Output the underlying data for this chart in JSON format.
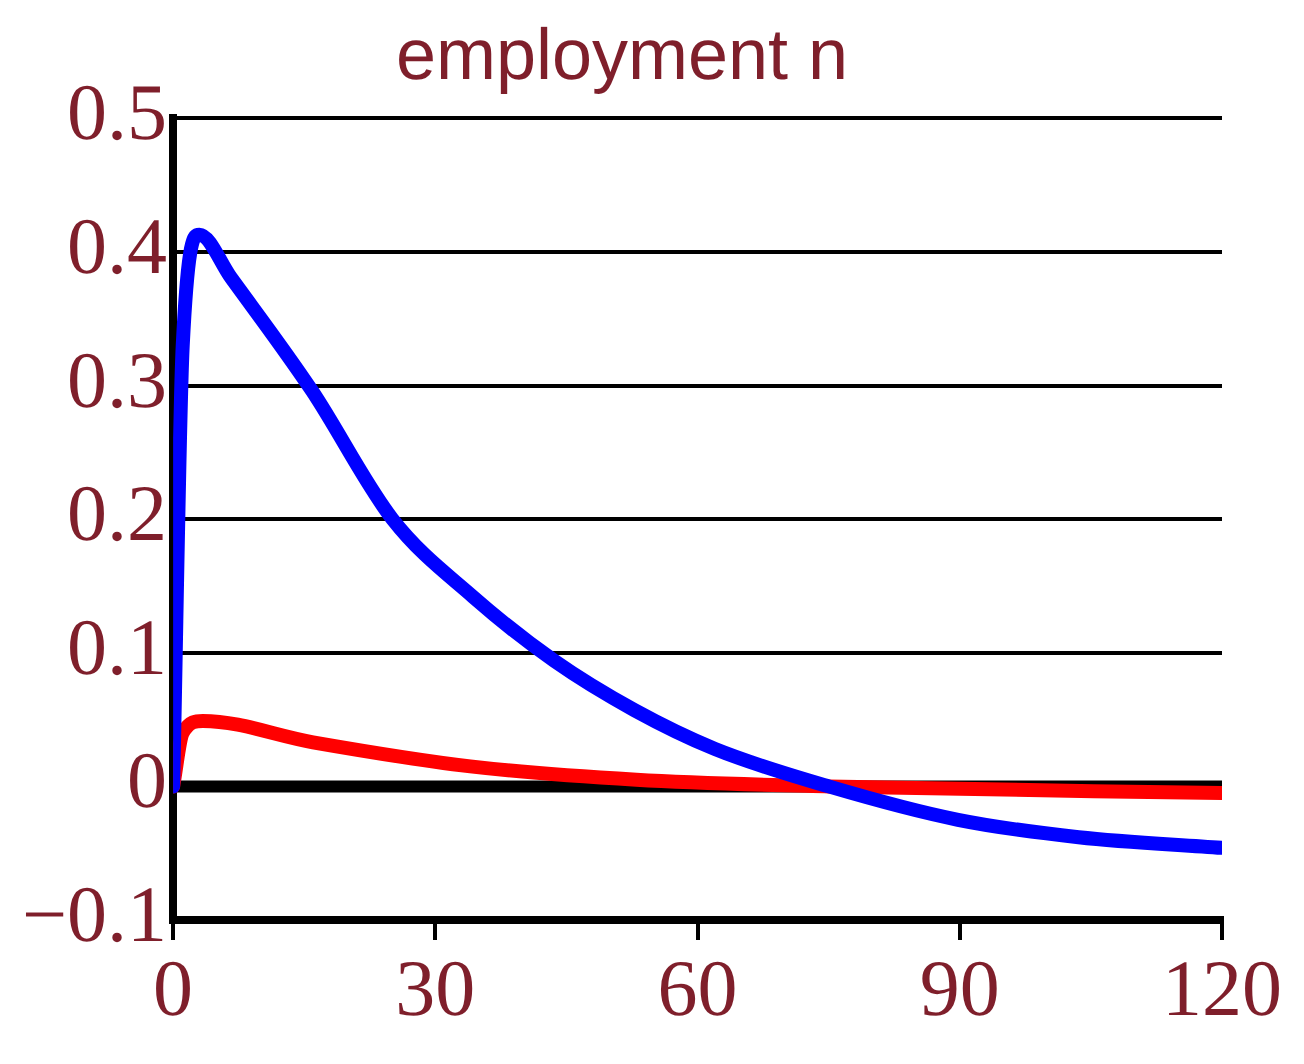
{
  "chart_data": {
    "type": "line",
    "title": "employment n",
    "x": [
      0,
      1.1,
      3,
      6.6,
      15.9,
      25.1,
      34.3,
      43.6,
      52.8,
      62,
      75,
      89.8,
      103.6,
      120
    ],
    "series": [
      {
        "color": "#0000ff",
        "values": [
          0,
          0.33,
          0.413,
          0.381,
          0.296,
          0.2,
          0.142,
          0.094,
          0.057,
          0.028,
          0,
          -0.025,
          -0.038,
          -0.046
        ]
      },
      {
        "color": "#ff0000",
        "x": [
          0,
          1.1,
          3.4,
          16,
          34,
          53,
          75,
          120
        ],
        "values": [
          0,
          0.04,
          0.049,
          0.033,
          0.015,
          0.005,
          0,
          -0.005
        ]
      }
    ],
    "xlim": [
      0,
      120
    ],
    "xticks": [
      0,
      30,
      60,
      90,
      120
    ],
    "ylim": [
      -0.1,
      0.5
    ],
    "yticks": [
      -0.1,
      0,
      0.1,
      0.2,
      0.3,
      0.4,
      0.5
    ],
    "grid": "y",
    "legend": false,
    "marker": "none",
    "line_style": "solid",
    "ref_lines": [
      {
        "axis": "y",
        "value": 0,
        "color": "#000000"
      }
    ]
  }
}
